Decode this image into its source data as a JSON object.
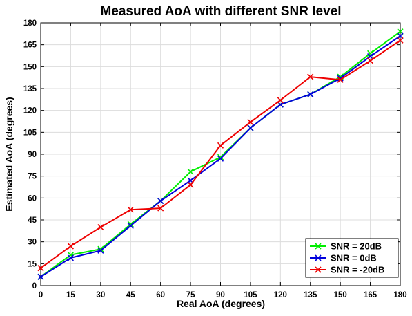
{
  "chart_data": {
    "type": "line",
    "title": "Measured AoA with different SNR level",
    "xlabel": "Real AoA (degrees)",
    "ylabel": "Estimated AoA (degrees)",
    "xlim": [
      0,
      180
    ],
    "ylim": [
      0,
      180
    ],
    "xticks": [
      0,
      15,
      30,
      45,
      60,
      75,
      90,
      105,
      120,
      135,
      150,
      165,
      180
    ],
    "yticks": [
      0,
      15,
      30,
      45,
      60,
      75,
      90,
      105,
      120,
      135,
      150,
      165,
      180
    ],
    "grid": true,
    "legend_position": "bottom-right",
    "x": [
      0,
      15,
      30,
      45,
      60,
      75,
      90,
      105,
      120,
      135,
      150,
      165,
      180
    ],
    "series": [
      {
        "name": "SNR = 20dB",
        "color": "#00ee00",
        "marker": "x",
        "values": [
          6,
          21,
          25,
          42,
          58,
          78,
          88,
          108,
          124,
          131,
          143,
          159,
          174
        ]
      },
      {
        "name": "SNR = 0dB",
        "color": "#0000dd",
        "marker": "x",
        "values": [
          6,
          19,
          24,
          41,
          58,
          72,
          87,
          108,
          124,
          131,
          142,
          157,
          171
        ]
      },
      {
        "name": "SNR = -20dB",
        "color": "#ee0000",
        "marker": "x",
        "values": [
          12,
          27,
          40,
          52,
          53,
          69,
          96,
          112,
          127,
          143,
          141,
          154,
          168
        ]
      }
    ]
  }
}
